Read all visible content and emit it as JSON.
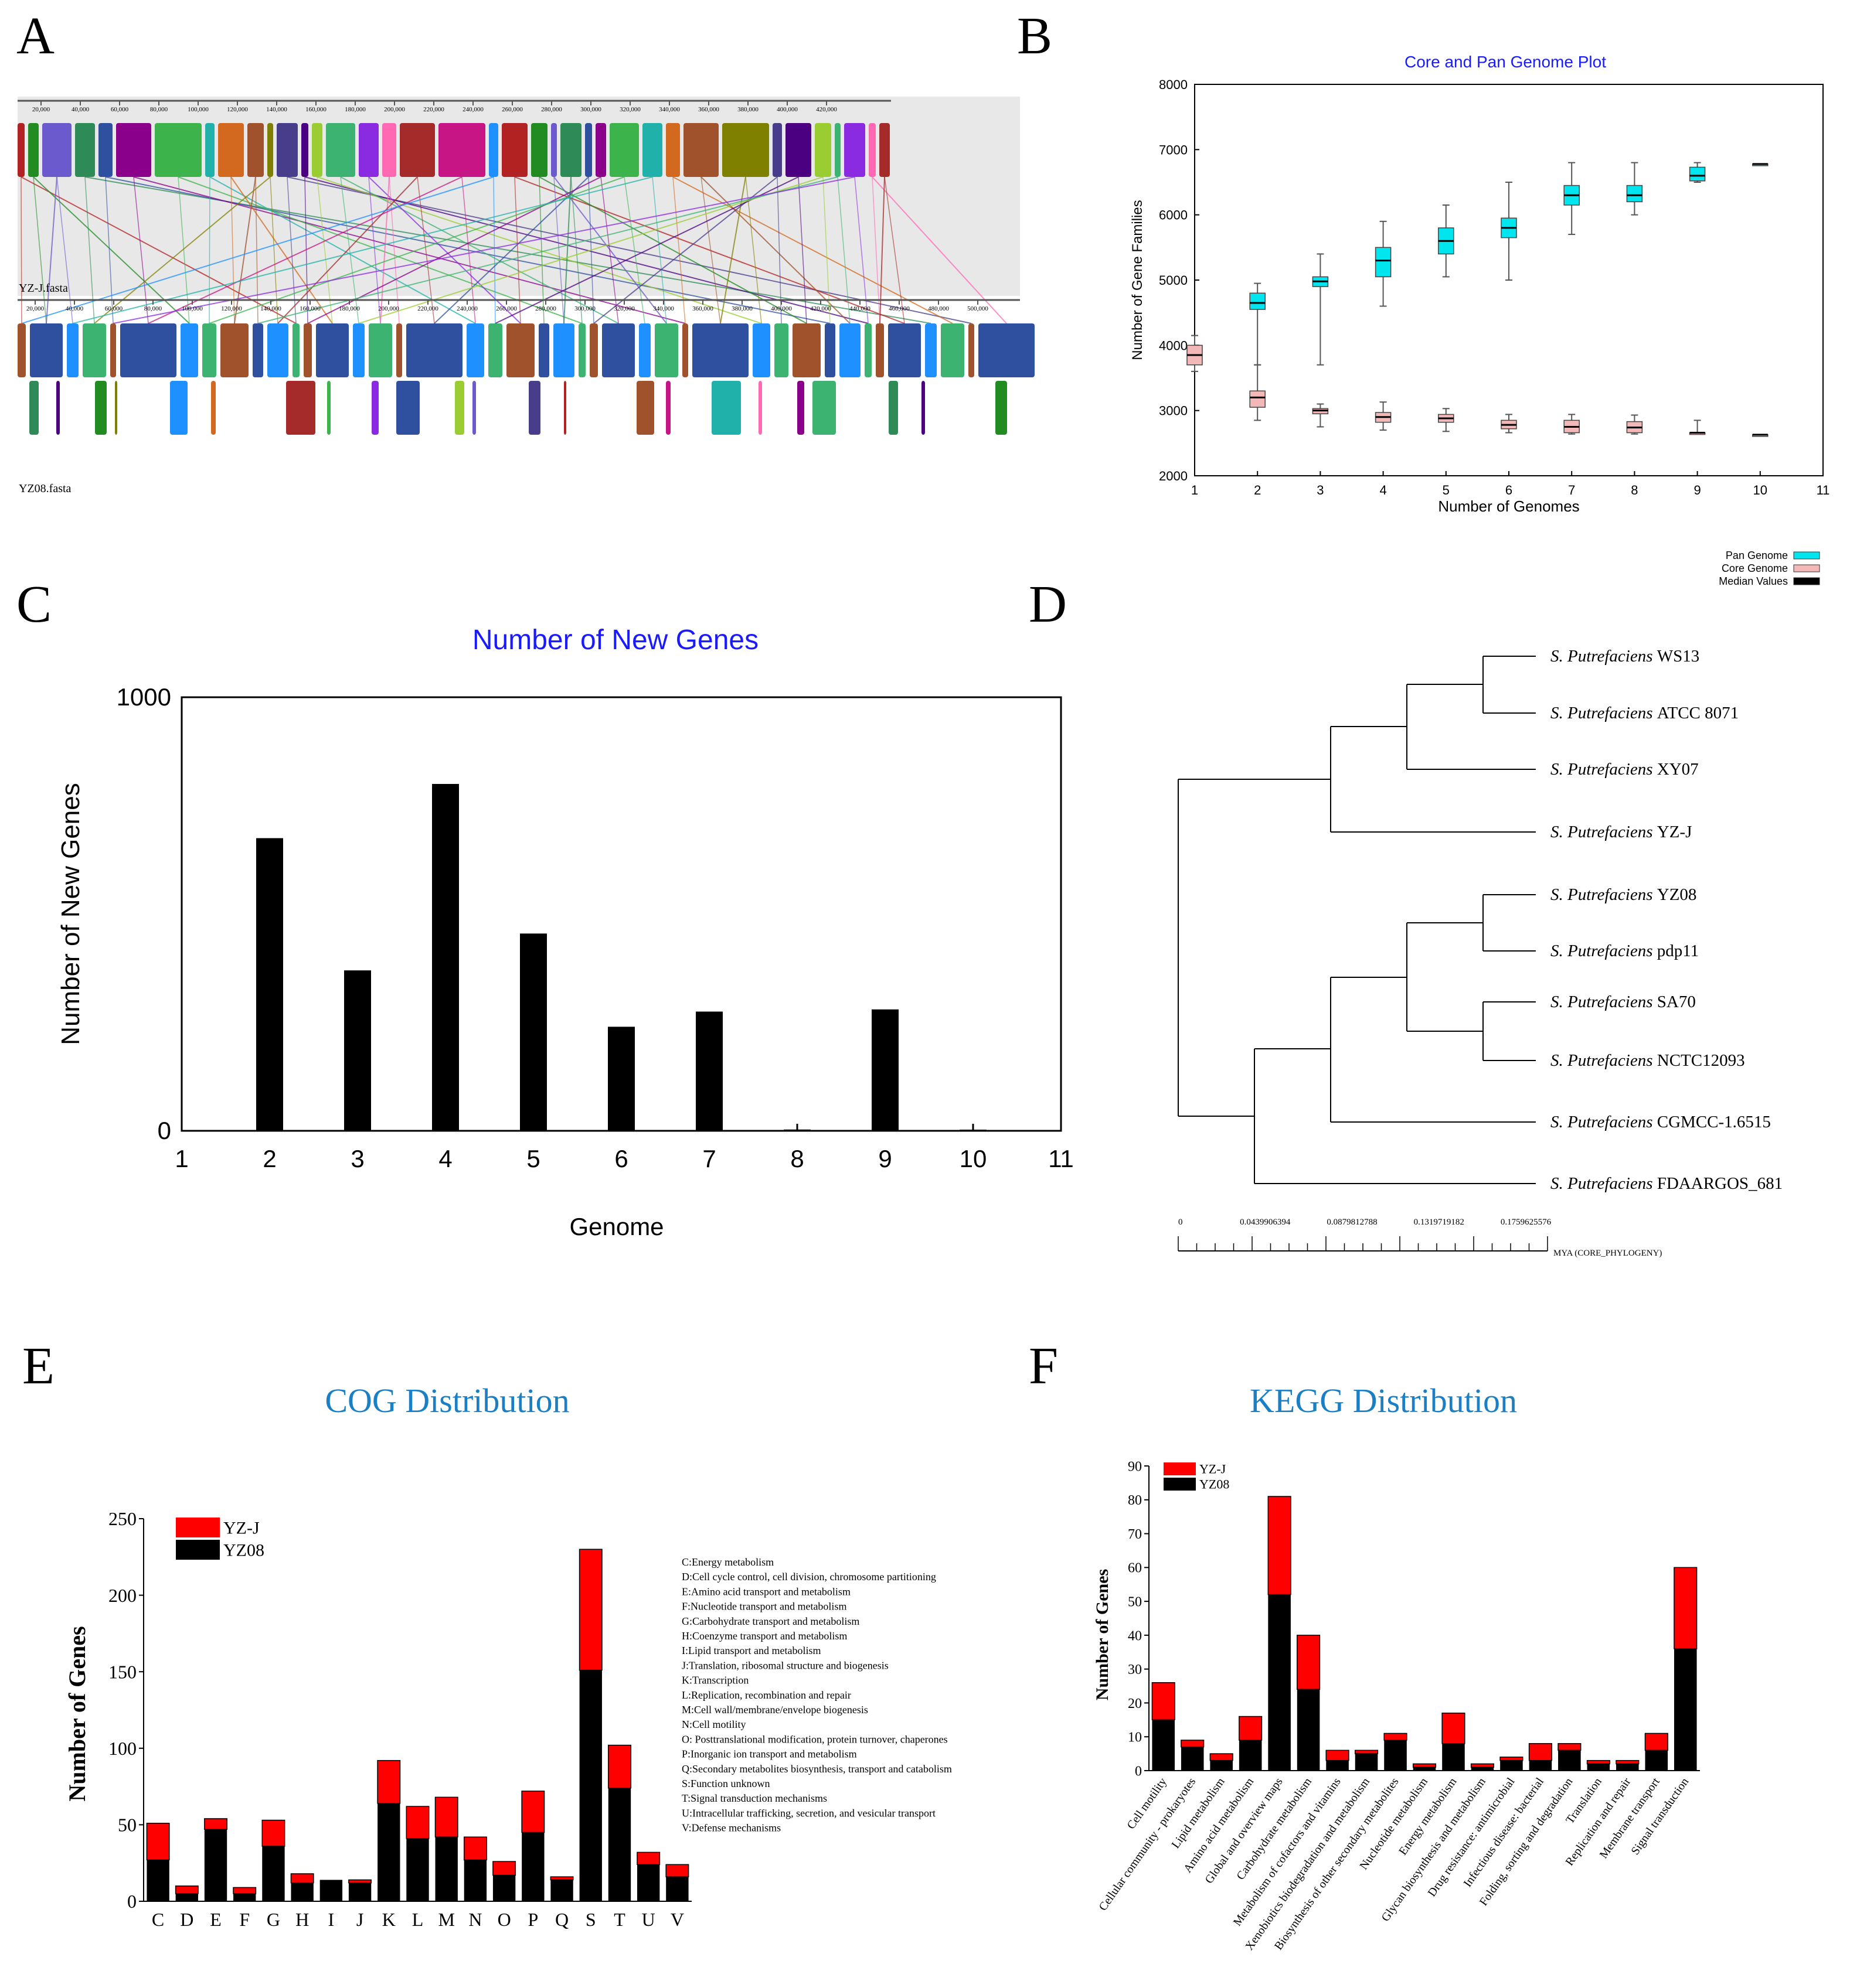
{
  "panels": {
    "A": {
      "letter": "A",
      "genome1_label": "YZ-J.fasta",
      "genome2_label": "YZ08.fasta",
      "ruler1_ticks": [
        "20,000",
        "40,000",
        "60,000",
        "80,000",
        "100,000",
        "120,000",
        "140,000",
        "160,000",
        "180,000",
        "200,000",
        "220,000",
        "240,000",
        "260,000",
        "280,000",
        "300,000",
        "320,000",
        "340,000",
        "360,000",
        "380,000",
        "400,000",
        "420,000"
      ],
      "ruler2_ticks": [
        "20,000",
        "40,000",
        "60,000",
        "80,000",
        "100,000",
        "120,000",
        "140,000",
        "160,000",
        "180,000",
        "200,000",
        "220,000",
        "240,000",
        "260,000",
        "280,000",
        "300,000",
        "320,000",
        "340,000",
        "360,000",
        "380,000",
        "400,000",
        "420,000",
        "440,000",
        "460,000",
        "480,000",
        "500,000"
      ]
    },
    "B": {
      "letter": "B"
    },
    "C": {
      "letter": "C"
    },
    "D": {
      "letter": "D"
    },
    "E": {
      "letter": "E"
    },
    "F": {
      "letter": "F"
    }
  },
  "colors": {
    "pan": "#00e5ee",
    "core": "#f2b8b8",
    "median": "#000000",
    "red": "#ff0000",
    "black": "#000000",
    "blue_title": "#1a1aff",
    "cyan_title": "#1a7fc4"
  },
  "chart_data": [
    {
      "id": "B",
      "type": "boxplot",
      "title": "Core and Pan Genome Plot",
      "xlabel": "Number of Genomes",
      "ylabel": "Number of Gene Families",
      "xlim": [
        1,
        11
      ],
      "ylim": [
        2000,
        8000
      ],
      "xticks": [
        "1",
        "2",
        "3",
        "4",
        "5",
        "6",
        "7",
        "8",
        "9",
        "10",
        "11"
      ],
      "yticks": [
        "2000",
        "3000",
        "4000",
        "5000",
        "6000",
        "7000",
        "8000"
      ],
      "legend": [
        "Pan Genome",
        "Core Genome",
        "Median Values"
      ],
      "pan": [
        {
          "x": 2,
          "min": 3700,
          "q1": 4550,
          "med": 4650,
          "q3": 4800,
          "max": 4950
        },
        {
          "x": 3,
          "min": 3700,
          "q1": 4900,
          "med": 4980,
          "q3": 5050,
          "max": 5400
        },
        {
          "x": 4,
          "min": 4600,
          "q1": 5050,
          "med": 5300,
          "q3": 5500,
          "max": 5900
        },
        {
          "x": 5,
          "min": 5050,
          "q1": 5400,
          "med": 5600,
          "q3": 5800,
          "max": 6150
        },
        {
          "x": 6,
          "min": 5000,
          "q1": 5650,
          "med": 5800,
          "q3": 5950,
          "max": 6500
        },
        {
          "x": 7,
          "min": 5700,
          "q1": 6150,
          "med": 6300,
          "q3": 6450,
          "max": 6800
        },
        {
          "x": 8,
          "min": 6000,
          "q1": 6200,
          "med": 6300,
          "q3": 6450,
          "max": 6800
        },
        {
          "x": 9,
          "min": 6500,
          "q1": 6520,
          "med": 6600,
          "q3": 6730,
          "max": 6800
        },
        {
          "x": 10,
          "min": 6780,
          "q1": 6780,
          "med": 6780,
          "q3": 6780,
          "max": 6780
        }
      ],
      "core": [
        {
          "x": 1,
          "min": 3600,
          "q1": 3700,
          "med": 3850,
          "q3": 4000,
          "max": 4150
        },
        {
          "x": 2,
          "min": 2850,
          "q1": 3050,
          "med": 3200,
          "q3": 3300,
          "max": 3700
        },
        {
          "x": 3,
          "min": 2750,
          "q1": 2950,
          "med": 3000,
          "q3": 3030,
          "max": 3100
        },
        {
          "x": 4,
          "min": 2700,
          "q1": 2820,
          "med": 2900,
          "q3": 2970,
          "max": 3130
        },
        {
          "x": 5,
          "min": 2680,
          "q1": 2820,
          "med": 2880,
          "q3": 2940,
          "max": 3030
        },
        {
          "x": 6,
          "min": 2660,
          "q1": 2720,
          "med": 2780,
          "q3": 2850,
          "max": 2940
        },
        {
          "x": 7,
          "min": 2640,
          "q1": 2660,
          "med": 2750,
          "q3": 2850,
          "max": 2940
        },
        {
          "x": 8,
          "min": 2640,
          "q1": 2660,
          "med": 2740,
          "q3": 2830,
          "max": 2930
        },
        {
          "x": 9,
          "min": 2640,
          "q1": 2640,
          "med": 2660,
          "q3": 2660,
          "max": 2850
        },
        {
          "x": 10,
          "min": 2630,
          "q1": 2630,
          "med": 2630,
          "q3": 2630,
          "max": 2630
        }
      ]
    },
    {
      "id": "C",
      "type": "bar",
      "title": "Number of New Genes",
      "xlabel": "Genome",
      "ylabel": "Number of New Genes",
      "xlim": [
        1,
        11
      ],
      "ylim": [
        0,
        1000
      ],
      "xticks": [
        "1",
        "2",
        "3",
        "4",
        "5",
        "6",
        "7",
        "8",
        "9",
        "10",
        "11"
      ],
      "yticks": [
        "0",
        "1000"
      ],
      "x": [
        2,
        3,
        4,
        5,
        6,
        7,
        8,
        9,
        10
      ],
      "values": [
        675,
        370,
        800,
        455,
        240,
        275,
        3,
        280,
        2
      ]
    },
    {
      "id": "D",
      "type": "tree",
      "leaves": [
        {
          "species": "S. Putrefaciens",
          "strain": "WS13"
        },
        {
          "species": "S. Putrefaciens",
          "strain": "ATCC 8071"
        },
        {
          "species": "S. Putrefaciens",
          "strain": "XY07"
        },
        {
          "species": "S. Putrefaciens",
          "strain": "YZ-J"
        },
        {
          "species": "S. Putrefaciens",
          "strain": "YZ08"
        },
        {
          "species": "S. Putrefaciens",
          "strain": "pdp11"
        },
        {
          "species": "S. Putrefaciens",
          "strain": "SA70"
        },
        {
          "species": "S. Putrefaciens",
          "strain": "NCTC12093"
        },
        {
          "species": "S. Putrefaciens",
          "strain": "CGMCC-1.6515"
        },
        {
          "species": "S. Putrefaciens",
          "strain": "FDAARGOS_681"
        }
      ],
      "scale_ticks": [
        "0",
        "0.0439906394",
        "0.0879812788",
        "0.1319719182",
        "0.1759625576"
      ],
      "scale_label": "MYA (CORE_PHYLOGENY)"
    },
    {
      "id": "E",
      "type": "stacked_bar",
      "title": "COG Distribution",
      "ylabel": "Number of Genes",
      "ylim": [
        0,
        250
      ],
      "yticks": [
        "0",
        "50",
        "100",
        "150",
        "200",
        "250"
      ],
      "categories": [
        "C",
        "D",
        "E",
        "F",
        "G",
        "H",
        "I",
        "J",
        "K",
        "L",
        "M",
        "N",
        "O",
        "P",
        "Q",
        "S",
        "T",
        "U",
        "V"
      ],
      "series": [
        {
          "name": "YZ08",
          "values": [
            27,
            5,
            47,
            5,
            36,
            12,
            14,
            12,
            64,
            41,
            42,
            27,
            17,
            45,
            14,
            151,
            74,
            24,
            16
          ]
        },
        {
          "name": "YZ-J",
          "values": [
            24,
            5,
            7,
            4,
            17,
            6,
            0,
            2,
            28,
            21,
            26,
            15,
            9,
            27,
            2,
            79,
            28,
            8,
            8
          ]
        }
      ],
      "legend": [
        "YZ-J",
        "YZ08"
      ],
      "descriptions": [
        "C:Energy metabolism",
        "D:Cell cycle control, cell division, chromosome partitioning",
        "E:Amino acid transport and metabolism",
        "F:Nucleotide transport and metabolism",
        "G:Carbohydrate transport and metabolism",
        "H:Coenzyme transport and metabolism",
        "I:Lipid transport and metabolism",
        "J:Translation, ribosomal structure and biogenesis",
        "K:Transcription",
        "L:Replication, recombination and repair",
        "M:Cell wall/membrane/envelope biogenesis",
        "N:Cell motility",
        "O: Posttranslational modification, protein turnover, chaperones",
        "P:Inorganic ion transport and metabolism",
        "Q:Secondary metabolites biosynthesis, transport and catabolism",
        "S:Function unknown",
        "T:Signal transduction mechanisms",
        "U:Intracellular trafficking, secretion, and vesicular transport",
        "V:Defense mechanisms"
      ]
    },
    {
      "id": "F",
      "type": "stacked_bar",
      "title": "KEGG Distribution",
      "ylabel": "Number of Genes",
      "ylim": [
        0,
        90
      ],
      "yticks": [
        "0",
        "10",
        "20",
        "30",
        "40",
        "50",
        "60",
        "70",
        "80",
        "90"
      ],
      "categories": [
        "Cell motility",
        "Cellular community - prokaryotes",
        "Lipid metabolism",
        "Amino acid metabolism",
        "Global and overview maps",
        "Carbohydrate metabolism",
        "Metabolism of cofactors and vitamins",
        "Xenobiotics biodegradation and metabolism",
        "Biosynthesis of other secondary metabolites",
        "Nucleotide metabolism",
        "Energy metabolism",
        "Glycan biosynthesis and metabolism",
        "Drug resistance: antimicrobial",
        "Infectious disease: bacterial",
        "Folding, sorting and degradation",
        "Translation",
        "Replication and repair",
        "Membrane transport",
        "Signal transduction"
      ],
      "series": [
        {
          "name": "YZ08",
          "values": [
            15,
            7,
            3,
            9,
            52,
            24,
            3,
            5,
            9,
            1,
            8,
            1,
            3,
            3,
            6,
            2,
            2,
            6,
            36
          ]
        },
        {
          "name": "YZ-J",
          "values": [
            11,
            2,
            2,
            7,
            29,
            16,
            3,
            1,
            2,
            1,
            9,
            1,
            1,
            5,
            2,
            1,
            1,
            5,
            24
          ]
        }
      ],
      "legend": [
        "YZ-J",
        "YZ08"
      ]
    }
  ]
}
